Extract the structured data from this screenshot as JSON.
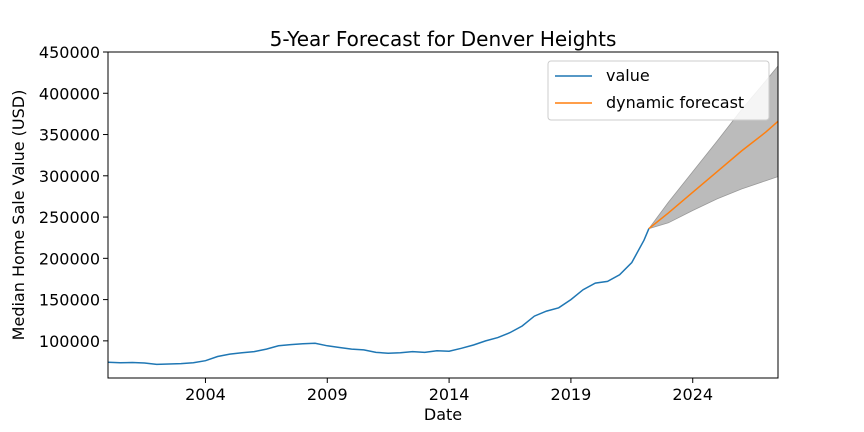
{
  "chart_data": {
    "type": "line",
    "title": "5-Year Forecast for Denver Heights",
    "xlabel": "Date",
    "ylabel": "Median Home Sale Value (USD)",
    "xlim": [
      2000.0,
      2027.5
    ],
    "ylim": [
      55000,
      450000
    ],
    "xticks": [
      2004,
      2009,
      2014,
      2019,
      2024
    ],
    "yticks": [
      100000,
      150000,
      200000,
      250000,
      300000,
      350000,
      400000,
      450000
    ],
    "legend_position": "top-right",
    "grid": false,
    "series": [
      {
        "name": "value",
        "color": "#1f77b4",
        "x": [
          2000.0,
          2000.5,
          2001.0,
          2001.5,
          2002.0,
          2002.5,
          2003.0,
          2003.5,
          2004.0,
          2004.5,
          2005.0,
          2005.5,
          2006.0,
          2006.5,
          2007.0,
          2007.5,
          2008.0,
          2008.5,
          2009.0,
          2009.5,
          2010.0,
          2010.5,
          2011.0,
          2011.5,
          2012.0,
          2012.5,
          2013.0,
          2013.5,
          2014.0,
          2014.5,
          2015.0,
          2015.5,
          2016.0,
          2016.5,
          2017.0,
          2017.5,
          2018.0,
          2018.5,
          2019.0,
          2019.5,
          2020.0,
          2020.5,
          2021.0,
          2021.5,
          2022.0,
          2022.2
        ],
        "y": [
          74000,
          73500,
          73800,
          73200,
          71500,
          72000,
          72500,
          73500,
          76000,
          81000,
          84000,
          85500,
          87000,
          90000,
          94000,
          95500,
          96500,
          97000,
          94000,
          92000,
          90000,
          89000,
          86000,
          85000,
          85500,
          87000,
          86000,
          88000,
          87500,
          91000,
          95000,
          100000,
          104000,
          110000,
          118000,
          130000,
          136000,
          140000,
          150000,
          162000,
          170000,
          172000,
          180000,
          195000,
          222000,
          236000
        ]
      },
      {
        "name": "dynamic forecast",
        "color": "#ff7f0e",
        "x": [
          2022.2,
          2023.0,
          2024.0,
          2025.0,
          2026.0,
          2027.0,
          2027.5
        ],
        "y": [
          236000,
          255000,
          280000,
          305000,
          330000,
          353000,
          366000
        ]
      }
    ],
    "confidence_band": {
      "color": "#bbbbbb",
      "x": [
        2022.2,
        2023.0,
        2024.0,
        2025.0,
        2026.0,
        2027.0,
        2027.5
      ],
      "lower": [
        236000,
        243000,
        258000,
        272000,
        284000,
        294000,
        299000
      ],
      "upper": [
        236000,
        268000,
        305000,
        342000,
        380000,
        415000,
        433000
      ]
    }
  }
}
